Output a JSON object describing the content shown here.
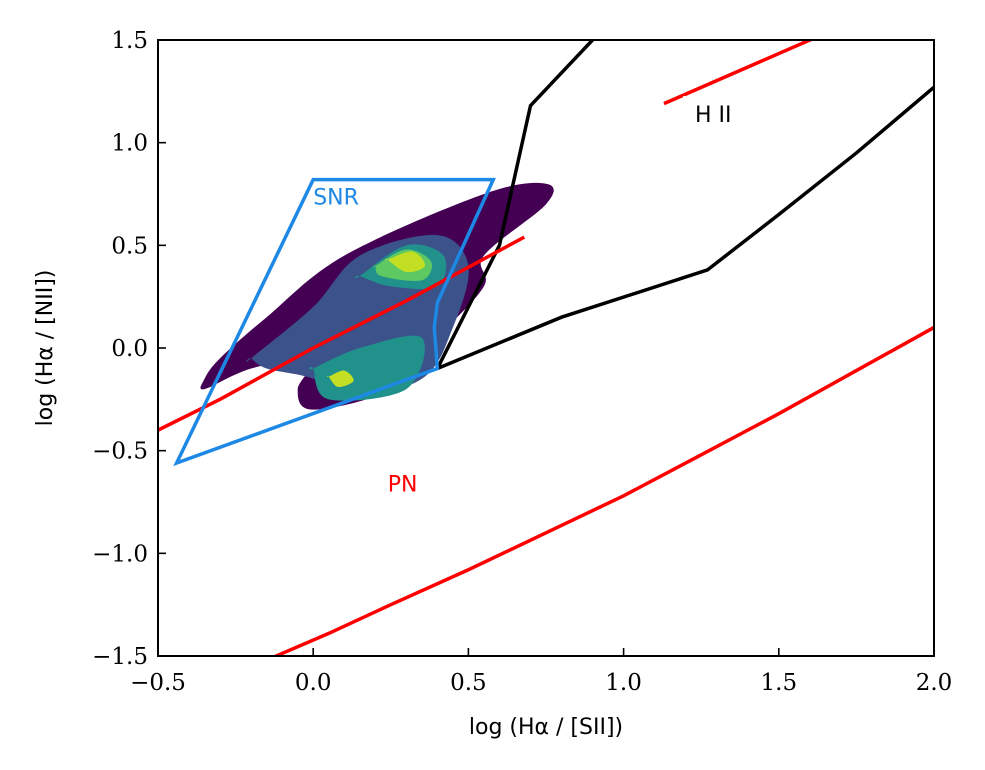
{
  "chart_data": {
    "type": "line",
    "title": "",
    "xlabel": "log (Hα / [SII])",
    "ylabel": "log (Hα / [NII])",
    "xlim": [
      -0.5,
      2.0
    ],
    "ylim": [
      -1.5,
      1.5
    ],
    "xticks": [
      -0.5,
      0.0,
      0.5,
      1.0,
      1.5,
      2.0
    ],
    "yticks": [
      -1.5,
      -1.0,
      -0.5,
      0.0,
      0.5,
      1.0,
      1.5
    ],
    "xtick_labels": [
      "−0.5",
      "0.0",
      "0.5",
      "1.0",
      "1.5",
      "2.0"
    ],
    "ytick_labels": [
      "−1.5",
      "−1.0",
      "−0.5",
      "0.0",
      "0.5",
      "1.0",
      "1.5"
    ],
    "grid": false,
    "series": [
      {
        "color": "#000000",
        "kind": "line",
        "x": [
          0.4,
          0.5,
          0.6,
          0.7,
          0.8,
          0.9
        ],
        "y": [
          -0.1,
          0.2,
          0.5,
          1.18,
          1.34,
          1.5
        ]
      },
      {
        "color": "#000000",
        "kind": "line",
        "x": [
          0.4,
          0.8,
          1.27,
          1.5,
          1.75,
          2.0
        ],
        "y": [
          -0.1,
          0.15,
          0.38,
          0.65,
          0.95,
          1.27
        ]
      },
      {
        "color": "#ff0000",
        "kind": "line",
        "x": [
          -0.5,
          -0.3,
          0.0,
          0.3,
          0.68
        ],
        "y": [
          -0.4,
          -0.25,
          0.0,
          0.23,
          0.54
        ]
      },
      {
        "color": "#ff0000",
        "kind": "line",
        "x": [
          1.13,
          1.6,
          1.66
        ],
        "y": [
          1.19,
          1.5,
          1.53
        ]
      },
      {
        "color": "#ff0000",
        "kind": "line",
        "x": [
          -0.15,
          0.05,
          0.25,
          0.5,
          0.75,
          1.0,
          1.25,
          1.5,
          1.75,
          2.0
        ],
        "y": [
          -1.52,
          -1.39,
          -1.25,
          -1.08,
          -0.9,
          -0.72,
          -0.52,
          -0.32,
          -0.11,
          0.1
        ]
      },
      {
        "color": "#1e88e5",
        "kind": "polygon",
        "x": [
          0.0,
          0.58,
          0.4,
          0.39,
          0.4,
          -0.44
        ],
        "y": [
          0.82,
          0.82,
          0.22,
          0.1,
          -0.1,
          -0.56
        ]
      }
    ],
    "density_contours": [
      {
        "level": 1,
        "color": "#440154",
        "x": [
          -0.35,
          -0.3,
          -0.15,
          0.1,
          0.55,
          0.75,
          0.75,
          0.55,
          0.55,
          0.4,
          0.25,
          0.0,
          -0.05,
          0.0,
          -0.2,
          -0.35
        ],
        "y": [
          -0.15,
          -0.05,
          0.15,
          0.45,
          0.75,
          0.8,
          0.7,
          0.45,
          0.3,
          0.05,
          -0.2,
          -0.3,
          -0.2,
          -0.05,
          -0.1,
          -0.2
        ]
      },
      {
        "level": 2,
        "color": "#3b528b",
        "x": [
          -0.2,
          0.0,
          0.15,
          0.4,
          0.5,
          0.45,
          0.35,
          0.1,
          0.0,
          -0.15,
          -0.2
        ],
        "y": [
          -0.05,
          0.2,
          0.45,
          0.55,
          0.4,
          0.1,
          -0.15,
          -0.25,
          -0.15,
          -0.1,
          -0.05
        ]
      },
      {
        "level": 3,
        "color": "#21918c",
        "x": [
          0.15,
          0.3,
          0.42,
          0.4,
          0.25,
          0.15
        ],
        "y": [
          0.35,
          0.5,
          0.45,
          0.3,
          0.3,
          0.35
        ]
      },
      {
        "level": 3,
        "color": "#21918c",
        "x": [
          0.0,
          0.15,
          0.35,
          0.3,
          0.05,
          0.0
        ],
        "y": [
          -0.1,
          0.0,
          0.05,
          -0.2,
          -0.25,
          -0.1
        ]
      },
      {
        "level": 4,
        "color": "#5ec962",
        "x": [
          0.2,
          0.3,
          0.38,
          0.35,
          0.22,
          0.2
        ],
        "y": [
          0.4,
          0.48,
          0.42,
          0.33,
          0.35,
          0.4
        ]
      },
      {
        "level": 5,
        "color": "#c2df23",
        "x": [
          0.24,
          0.32,
          0.36,
          0.3,
          0.24
        ],
        "y": [
          0.43,
          0.47,
          0.4,
          0.37,
          0.43
        ]
      },
      {
        "level": 5,
        "color": "#c2df23",
        "x": [
          0.05,
          0.1,
          0.13,
          0.08,
          0.05
        ],
        "y": [
          -0.14,
          -0.11,
          -0.16,
          -0.19,
          -0.14
        ]
      }
    ],
    "annotations": [
      {
        "text": "SNR",
        "x": 0.0,
        "y": 0.7,
        "color": "#1e88e5"
      },
      {
        "text": "H II",
        "x": 1.23,
        "y": 1.1,
        "color": "#000000"
      },
      {
        "text": "PN",
        "x": 0.24,
        "y": -0.7,
        "color": "#ff0000"
      }
    ]
  }
}
